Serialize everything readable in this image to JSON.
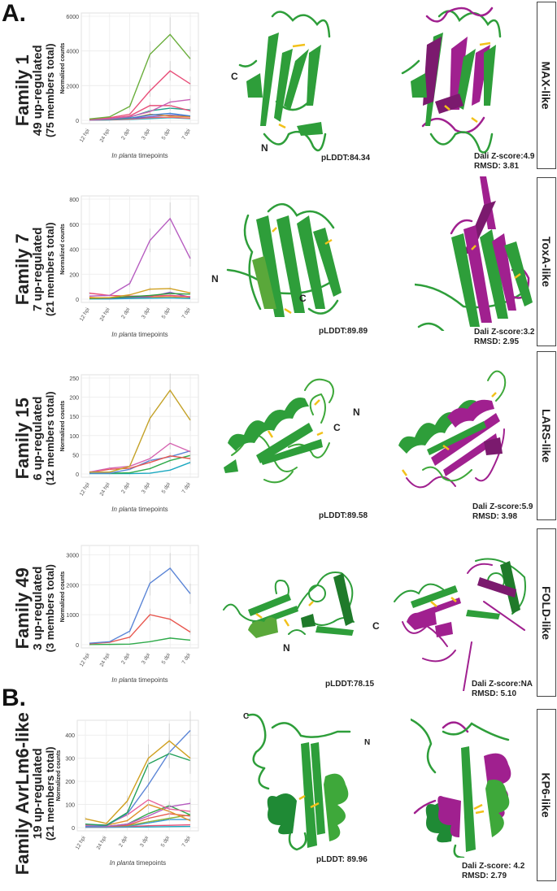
{
  "panels": {
    "a_label": "A.",
    "b_label": "B."
  },
  "families": [
    {
      "title": "Family 1",
      "upregulated": "49 up-regulated",
      "total": "(75 members total)",
      "plddt": "pLDDT:84.34",
      "dali": "Dali Z-score:4.9",
      "rmsd": "RMSD: 3.81",
      "fold": "MAX-like",
      "n_term": "N",
      "c_term": "C"
    },
    {
      "title": "Family 7",
      "upregulated": "7 up-regulated",
      "total": "(21 members total)",
      "plddt": "pLDDT:89.89",
      "dali": "Dali Z-score:3.2",
      "rmsd": "RMSD: 2.95",
      "fold": "ToxA-like",
      "n_term": "N",
      "c_term": "C"
    },
    {
      "title": "Family 15",
      "upregulated": "6 up-regulated",
      "total": "(12 members total)",
      "plddt": "pLDDT:89.58",
      "dali": "Dali Z-score:5.9",
      "rmsd": "RMSD: 3.98",
      "fold": "LARS-like",
      "n_term": "N",
      "c_term": "C"
    },
    {
      "title": "Family 49",
      "upregulated": "3 up-regulated",
      "total": "(3 members total)",
      "plddt": "pLDDT:78.15",
      "dali": "Dali Z-score:NA",
      "rmsd": "RMSD: 5.10",
      "fold": "FOLD-like",
      "n_term": "N",
      "c_term": "C"
    },
    {
      "title": "Family AvrLm6-like",
      "upregulated": "19 up-regulated",
      "total": "(21 members total)",
      "plddt": "pLDDT: 89.96",
      "dali": "Dali Z-score: 4.2",
      "rmsd": "RMSD: 2.79",
      "fold": "KP6-like",
      "n_term": "N",
      "c_term": "C"
    }
  ],
  "colors": {
    "predicted": "#2e9e3a",
    "reference": "#a0208f",
    "disulfide": "#f2c11a",
    "gridline": "#ebebeb",
    "axis_text": "#444444"
  },
  "chart_data": [
    {
      "type": "line",
      "title": "Family 1",
      "xlabel_italic": "In planta",
      "xlabel_rest": " timepoints",
      "ylabel": "Normalized counts",
      "categories": [
        "12 hpi",
        "24 hpi",
        "2 dpi",
        "3 dpi",
        "5 dpi",
        "7 dpi"
      ],
      "ylim": [
        0,
        6000
      ],
      "yticks": [
        0,
        2000,
        4000,
        6000
      ],
      "grid": true,
      "series": [
        {
          "name": "s1",
          "color": "#6aae3c",
          "values": [
            80,
            200,
            800,
            3800,
            4950,
            3550
          ]
        },
        {
          "name": "s2",
          "color": "#e8507a",
          "values": [
            60,
            150,
            350,
            1700,
            2850,
            2100
          ]
        },
        {
          "name": "s3",
          "color": "#c85fb4",
          "values": [
            40,
            90,
            200,
            500,
            1050,
            1200
          ]
        },
        {
          "name": "s4",
          "color": "#e8507a",
          "values": [
            40,
            100,
            250,
            850,
            850,
            550
          ]
        },
        {
          "name": "s5",
          "color": "#1aa08a",
          "values": [
            30,
            80,
            180,
            550,
            700,
            600
          ]
        },
        {
          "name": "s6",
          "color": "#3b7fd1",
          "values": [
            20,
            60,
            120,
            300,
            400,
            250
          ]
        },
        {
          "name": "s7",
          "color": "#e0922b",
          "values": [
            20,
            50,
            100,
            350,
            250,
            200
          ]
        },
        {
          "name": "s8",
          "color": "#7e57c2",
          "values": [
            15,
            40,
            90,
            200,
            300,
            220
          ]
        },
        {
          "name": "s9",
          "color": "#f06a6a",
          "values": [
            10,
            30,
            70,
            150,
            180,
            120
          ]
        },
        {
          "name": "s10",
          "color": "#22b5c8",
          "values": [
            10,
            20,
            50,
            100,
            150,
            100
          ]
        }
      ]
    },
    {
      "type": "line",
      "title": "Family 7",
      "xlabel_italic": "In planta",
      "xlabel_rest": " timepoints",
      "ylabel": "Normalized counts",
      "categories": [
        "12 hpi",
        "24 hpi",
        "2 dpi",
        "3 dpi",
        "5 dpi",
        "7 dpi"
      ],
      "ylim": [
        0,
        800
      ],
      "yticks": [
        0,
        200,
        400,
        600,
        800
      ],
      "grid": true,
      "series": [
        {
          "name": "s1",
          "color": "#b65cc0",
          "values": [
            25,
            30,
            125,
            470,
            645,
            325
          ]
        },
        {
          "name": "s2",
          "color": "#d0a020",
          "values": [
            10,
            12,
            35,
            80,
            85,
            50
          ]
        },
        {
          "name": "s3",
          "color": "#2e9e3a",
          "values": [
            5,
            10,
            20,
            30,
            45,
            40
          ]
        },
        {
          "name": "s4",
          "color": "#e8507a",
          "values": [
            48,
            30,
            25,
            25,
            30,
            20
          ]
        },
        {
          "name": "s5",
          "color": "#7e57c2",
          "values": [
            5,
            8,
            15,
            20,
            55,
            15
          ]
        },
        {
          "name": "s6",
          "color": "#1ca7c8",
          "values": [
            2,
            2,
            5,
            8,
            10,
            5
          ]
        },
        {
          "name": "s7",
          "color": "#e0922b",
          "values": [
            15,
            5,
            10,
            15,
            20,
            10
          ]
        }
      ]
    },
    {
      "type": "line",
      "title": "Family 15",
      "xlabel_italic": "In planta",
      "xlabel_rest": " timepoints",
      "ylabel": "Normalized counts",
      "categories": [
        "12 hpi",
        "24 hpi",
        "2 dpi",
        "3 dpi",
        "5 dpi",
        "7 dpi"
      ],
      "ylim": [
        0,
        250
      ],
      "yticks": [
        0,
        50,
        100,
        150,
        200,
        250
      ],
      "grid": true,
      "series": [
        {
          "name": "s1",
          "color": "#c4a228",
          "values": [
            5,
            5,
            20,
            145,
            218,
            140
          ]
        },
        {
          "name": "s2",
          "color": "#d563b0",
          "values": [
            5,
            15,
            20,
            40,
            80,
            58
          ]
        },
        {
          "name": "s3",
          "color": "#e8574f",
          "values": [
            5,
            12,
            15,
            30,
            47,
            40
          ]
        },
        {
          "name": "s4",
          "color": "#5b85d6",
          "values": [
            2,
            2,
            12,
            35,
            45,
            60
          ]
        },
        {
          "name": "s5",
          "color": "#2eaa4a",
          "values": [
            2,
            2,
            3,
            14,
            35,
            48
          ]
        },
        {
          "name": "s6",
          "color": "#1aa8c0",
          "values": [
            1,
            1,
            1,
            2,
            10,
            30
          ]
        }
      ]
    },
    {
      "type": "line",
      "title": "Family 49",
      "xlabel_italic": "In planta",
      "xlabel_rest": " timepoints",
      "ylabel": "Normalized counts",
      "categories": [
        "12 hpi",
        "24 hpi",
        "2 dpi",
        "3 dpi",
        "5 dpi",
        "7 dpi"
      ],
      "ylim": [
        0,
        3200
      ],
      "yticks": [
        0,
        1000,
        2000,
        3000
      ],
      "grid": true,
      "series": [
        {
          "name": "s1",
          "color": "#5b85d6",
          "values": [
            50,
            100,
            450,
            2050,
            2550,
            1700
          ]
        },
        {
          "name": "s2",
          "color": "#e8574f",
          "values": [
            30,
            80,
            250,
            1000,
            850,
            420
          ]
        },
        {
          "name": "s3",
          "color": "#2eaa4a",
          "values": [
            5,
            10,
            20,
            100,
            220,
            150
          ]
        }
      ]
    },
    {
      "type": "line",
      "title": "Family AvrLm6-like",
      "xlabel_italic": "In planta",
      "xlabel_rest": " timepoints",
      "ylabel": "Normalized counts",
      "categories": [
        "12 hpi",
        "24 hpi",
        "2 dpi",
        "3 dpi",
        "5 dpi",
        "7 dpi"
      ],
      "ylim": [
        0,
        450
      ],
      "yticks": [
        0,
        100,
        200,
        300,
        400
      ],
      "grid": true,
      "series": [
        {
          "name": "s1",
          "color": "#d0a020",
          "values": [
            38,
            18,
            115,
            300,
            375,
            300
          ]
        },
        {
          "name": "s2",
          "color": "#22a05a",
          "values": [
            15,
            10,
            65,
            275,
            320,
            290
          ]
        },
        {
          "name": "s3",
          "color": "#5b85d6",
          "values": [
            5,
            8,
            60,
            185,
            325,
            420
          ]
        },
        {
          "name": "s4",
          "color": "#e8609a",
          "values": [
            10,
            12,
            55,
            120,
            80,
            70
          ]
        },
        {
          "name": "s5",
          "color": "#e0922b",
          "values": [
            12,
            10,
            30,
            100,
            70,
            30
          ]
        },
        {
          "name": "s6",
          "color": "#b65cc0",
          "values": [
            5,
            5,
            15,
            50,
            90,
            105
          ]
        },
        {
          "name": "s7",
          "color": "#2eaa4a",
          "values": [
            5,
            5,
            15,
            60,
            95,
            55
          ]
        },
        {
          "name": "s8",
          "color": "#e8574f",
          "values": [
            5,
            5,
            10,
            40,
            60,
            50
          ]
        },
        {
          "name": "s9",
          "color": "#8fb43a",
          "values": [
            5,
            5,
            8,
            25,
            40,
            55
          ]
        },
        {
          "name": "s10",
          "color": "#3a9ad9",
          "values": [
            3,
            3,
            5,
            20,
            35,
            35
          ]
        },
        {
          "name": "s11",
          "color": "#e8507a",
          "values": [
            2,
            2,
            4,
            8,
            10,
            12
          ]
        },
        {
          "name": "s12",
          "color": "#1aa8c0",
          "values": [
            1,
            1,
            2,
            3,
            4,
            5
          ]
        }
      ]
    }
  ]
}
